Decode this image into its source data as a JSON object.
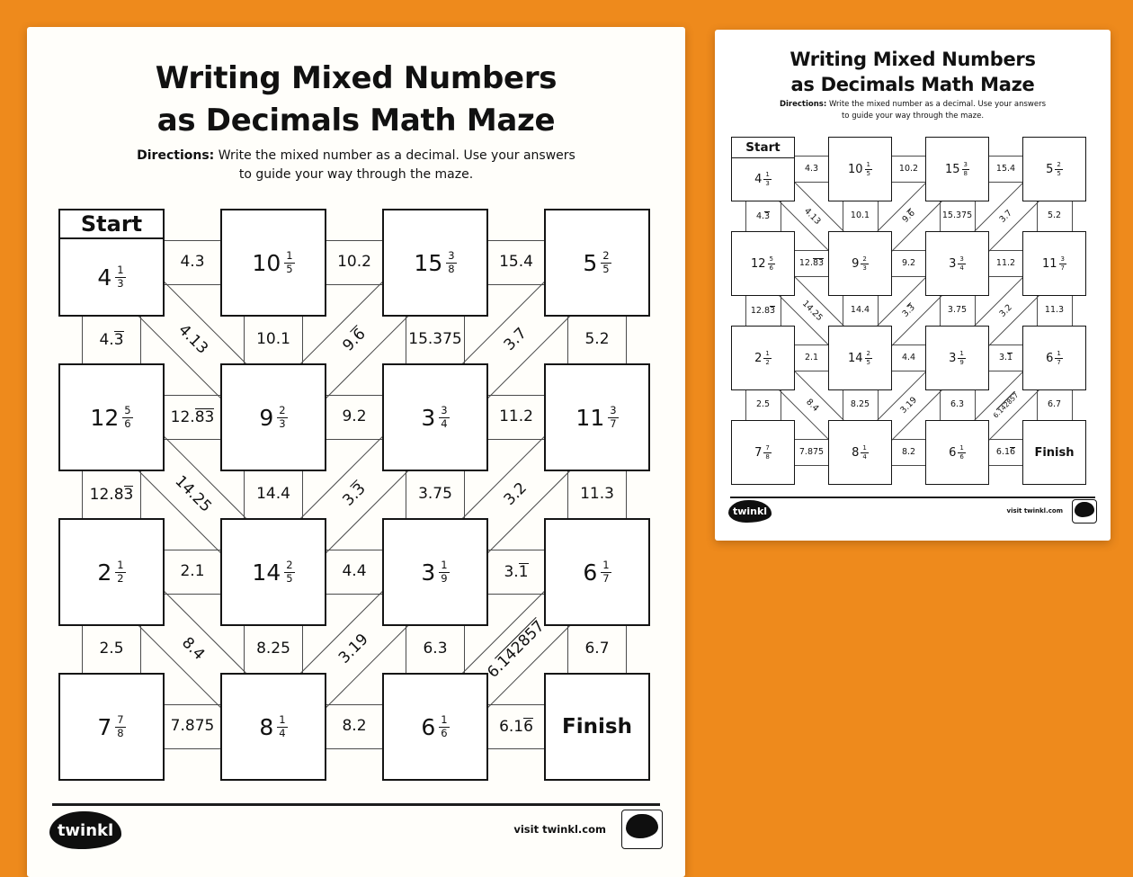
{
  "page": {
    "title_line1": "Writing Mixed Numbers",
    "title_line2": "as Decimals Math Maze",
    "directions_label": "Directions:",
    "directions_line1": "Write the mixed number as a decimal. Use your answers",
    "directions_line2": "to guide your way through the maze.",
    "footer": {
      "logo_text": "twinkl",
      "visit_text": "visit twinkl.com"
    }
  },
  "colors": {
    "background_orange": "#EE8A1C",
    "page_white": "#FFFFFF",
    "box_border_black": "#141414",
    "corridor_line_gray": "#4B4B4B"
  },
  "maze": {
    "start_label": "Start",
    "finish_label": "Finish",
    "boxes": [
      {
        "row": 0,
        "col": 0,
        "type": "start",
        "whole": "4",
        "num": "1",
        "den": "3"
      },
      {
        "row": 0,
        "col": 1,
        "whole": "10",
        "num": "1",
        "den": "5"
      },
      {
        "row": 0,
        "col": 2,
        "whole": "15",
        "num": "3",
        "den": "8"
      },
      {
        "row": 0,
        "col": 3,
        "whole": "5",
        "num": "2",
        "den": "5"
      },
      {
        "row": 1,
        "col": 0,
        "whole": "12",
        "num": "5",
        "den": "6"
      },
      {
        "row": 1,
        "col": 1,
        "whole": "9",
        "num": "2",
        "den": "3"
      },
      {
        "row": 1,
        "col": 2,
        "whole": "3",
        "num": "3",
        "den": "4"
      },
      {
        "row": 1,
        "col": 3,
        "whole": "11",
        "num": "3",
        "den": "7"
      },
      {
        "row": 2,
        "col": 0,
        "whole": "2",
        "num": "1",
        "den": "2"
      },
      {
        "row": 2,
        "col": 1,
        "whole": "14",
        "num": "2",
        "den": "5"
      },
      {
        "row": 2,
        "col": 2,
        "whole": "3",
        "num": "1",
        "den": "9"
      },
      {
        "row": 2,
        "col": 3,
        "whole": "6",
        "num": "1",
        "den": "7"
      },
      {
        "row": 3,
        "col": 0,
        "whole": "7",
        "num": "7",
        "den": "8"
      },
      {
        "row": 3,
        "col": 1,
        "whole": "8",
        "num": "1",
        "den": "4"
      },
      {
        "row": 3,
        "col": 2,
        "whole": "6",
        "num": "1",
        "den": "6"
      },
      {
        "row": 3,
        "col": 3,
        "type": "finish"
      }
    ],
    "h_connectors": [
      {
        "row": 0,
        "col": 0,
        "pre": "4.3"
      },
      {
        "row": 0,
        "col": 1,
        "pre": "10.2"
      },
      {
        "row": 0,
        "col": 2,
        "pre": "15.4"
      },
      {
        "row": 1,
        "col": 0,
        "pre": "12.",
        "over": "83"
      },
      {
        "row": 1,
        "col": 1,
        "pre": "9.2"
      },
      {
        "row": 1,
        "col": 2,
        "pre": "11.2"
      },
      {
        "row": 2,
        "col": 0,
        "pre": "2.1"
      },
      {
        "row": 2,
        "col": 1,
        "pre": "4.4"
      },
      {
        "row": 2,
        "col": 2,
        "pre": "3.",
        "over": "1"
      },
      {
        "row": 3,
        "col": 0,
        "pre": "7.875"
      },
      {
        "row": 3,
        "col": 1,
        "pre": "8.2"
      },
      {
        "row": 3,
        "col": 2,
        "pre": "6.1",
        "over": "6"
      }
    ],
    "v_connectors": [
      {
        "row": 0,
        "col": 0,
        "pre": "4.",
        "over": "3"
      },
      {
        "row": 0,
        "col": 1,
        "pre": "10.1"
      },
      {
        "row": 0,
        "col": 2,
        "pre": "15.375"
      },
      {
        "row": 0,
        "col": 3,
        "pre": "5.2"
      },
      {
        "row": 1,
        "col": 0,
        "pre": "12.8",
        "over": "3"
      },
      {
        "row": 1,
        "col": 1,
        "pre": "14.4"
      },
      {
        "row": 1,
        "col": 2,
        "pre": "3.75"
      },
      {
        "row": 1,
        "col": 3,
        "pre": "11.3"
      },
      {
        "row": 2,
        "col": 0,
        "pre": "2.5"
      },
      {
        "row": 2,
        "col": 1,
        "pre": "8.25"
      },
      {
        "row": 2,
        "col": 2,
        "pre": "6.3"
      },
      {
        "row": 2,
        "col": 3,
        "pre": "6.7"
      }
    ],
    "d_connectors": [
      {
        "row": 0,
        "col": 0,
        "dir": "down",
        "pre": "4.13"
      },
      {
        "row": 0,
        "col": 1,
        "dir": "up",
        "pre": "9.",
        "over": "6"
      },
      {
        "row": 0,
        "col": 2,
        "dir": "up",
        "pre": "3.7"
      },
      {
        "row": 1,
        "col": 0,
        "dir": "down",
        "pre": "14.25"
      },
      {
        "row": 1,
        "col": 1,
        "dir": "up",
        "pre": "3.",
        "over": "3"
      },
      {
        "row": 1,
        "col": 2,
        "dir": "up",
        "pre": "3.2"
      },
      {
        "row": 2,
        "col": 0,
        "dir": "down",
        "pre": "8.4"
      },
      {
        "row": 2,
        "col": 1,
        "dir": "up",
        "pre": "3.19"
      },
      {
        "row": 2,
        "col": 2,
        "dir": "up",
        "pre": "6.",
        "over": "142857"
      }
    ]
  }
}
